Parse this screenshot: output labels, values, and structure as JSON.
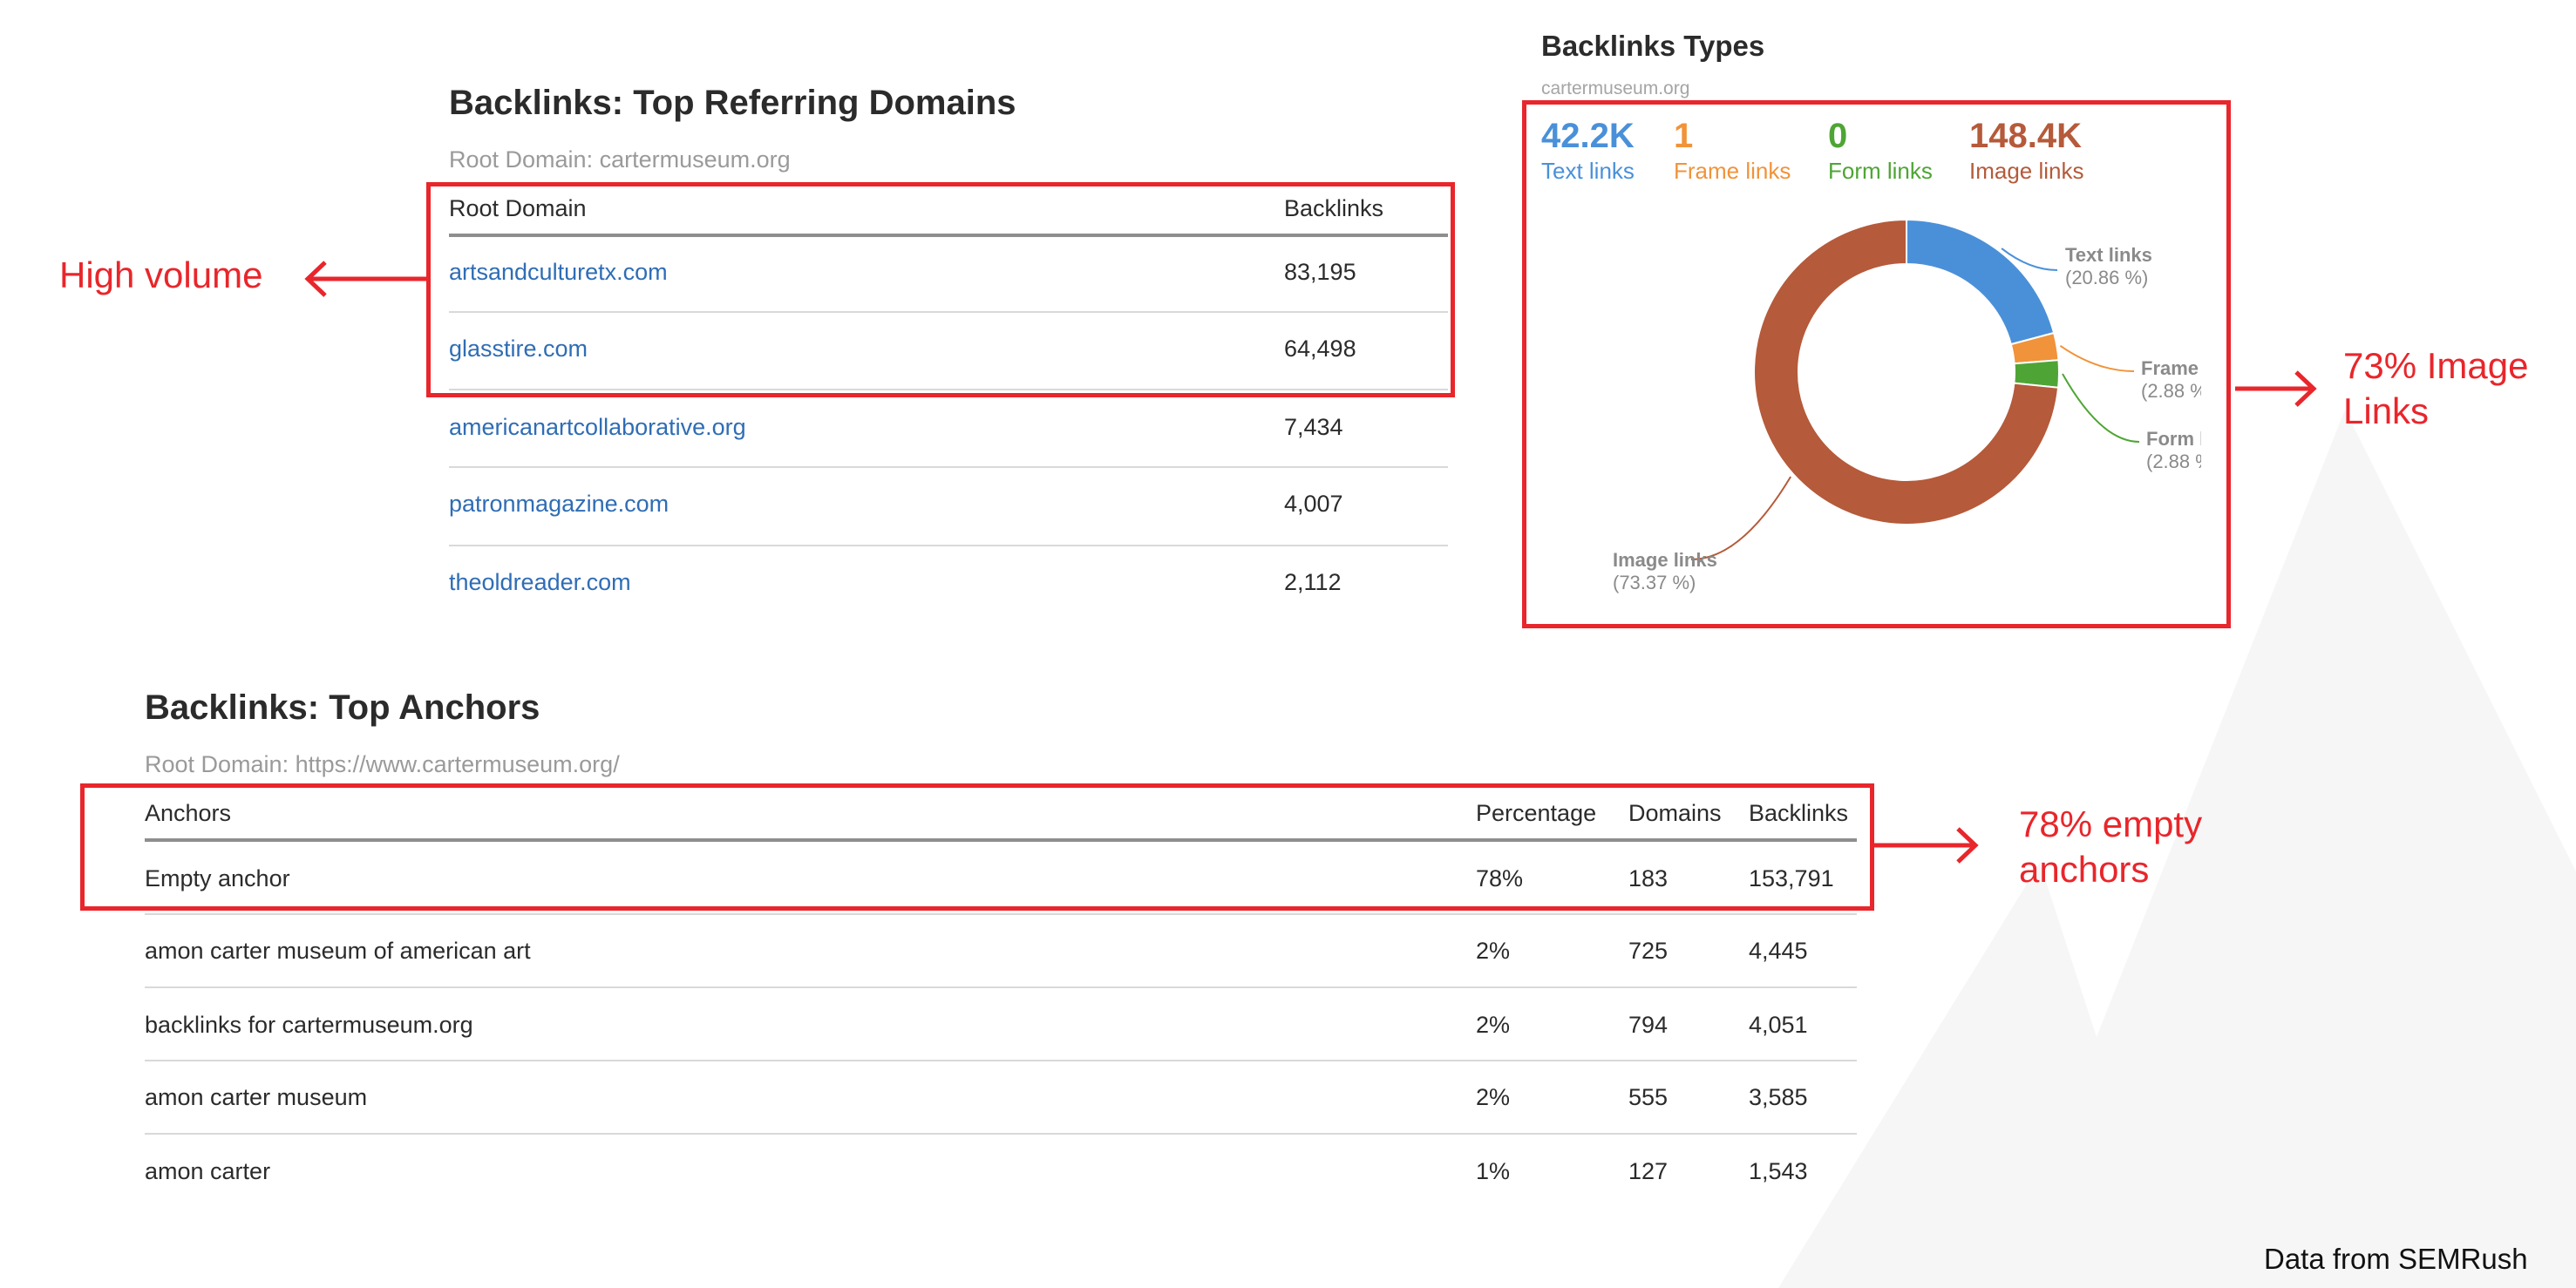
{
  "referring": {
    "title": "Backlinks: Top Referring Domains",
    "subtitle": "Root Domain: cartermuseum.org",
    "columns": [
      "Root Domain",
      "Backlinks"
    ],
    "rows": [
      {
        "domain": "artsandculturetx.com",
        "backlinks": "83,195"
      },
      {
        "domain": "glasstire.com",
        "backlinks": "64,498"
      },
      {
        "domain": "americanartcollaborative.org",
        "backlinks": "7,434"
      },
      {
        "domain": "patronmagazine.com",
        "backlinks": "4,007"
      },
      {
        "domain": "theoldreader.com",
        "backlinks": "2,112"
      }
    ]
  },
  "types": {
    "title": "Backlinks Types",
    "subtitle": "cartermuseum.org",
    "stats": [
      {
        "value": "42.2K",
        "label": "Text links",
        "color": "#4a90d9"
      },
      {
        "value": "1",
        "label": "Frame links",
        "color": "#f0933a"
      },
      {
        "value": "0",
        "label": "Form links",
        "color": "#4ea535"
      },
      {
        "value": "148.4K",
        "label": "Image links",
        "color": "#b55a3a"
      }
    ]
  },
  "chart_data": {
    "type": "pie",
    "donut": true,
    "title": "Backlinks Types",
    "slices": [
      {
        "name": "Text links",
        "value": 20.86,
        "label": "Text links",
        "pct_label": "(20.86 %)",
        "color": "#4a90d9"
      },
      {
        "name": "Frame links",
        "value": 2.88,
        "label": "Frame",
        "pct_label": "(2.88 %",
        "color": "#f0933a"
      },
      {
        "name": "Form links",
        "value": 2.88,
        "label": "Form l",
        "pct_label": "(2.88 %",
        "color": "#4ea535"
      },
      {
        "name": "Image links",
        "value": 73.37,
        "label": "Image links",
        "pct_label": "(73.37 %)",
        "color": "#b55a3a"
      }
    ]
  },
  "anchors": {
    "title": "Backlinks: Top Anchors",
    "subtitle": "Root Domain: https://www.cartermuseum.org/",
    "columns": [
      "Anchors",
      "Percentage",
      "Domains",
      "Backlinks"
    ],
    "rows": [
      {
        "anchor": "Empty anchor",
        "percentage": "78%",
        "domains": "183",
        "backlinks": "153,791"
      },
      {
        "anchor": "amon carter museum of american art",
        "percentage": "2%",
        "domains": "725",
        "backlinks": "4,445"
      },
      {
        "anchor": "backlinks for cartermuseum.org",
        "percentage": "2%",
        "domains": "794",
        "backlinks": "4,051"
      },
      {
        "anchor": "amon carter museum",
        "percentage": "2%",
        "domains": "555",
        "backlinks": "3,585"
      },
      {
        "anchor": "amon carter",
        "percentage": "1%",
        "domains": "127",
        "backlinks": "1,543"
      }
    ]
  },
  "annotations": {
    "high_volume": "High volume",
    "image_links_line1": "73% Image",
    "image_links_line2": "Links",
    "empty_anchors_line1": "78% empty",
    "empty_anchors_line2": "anchors"
  },
  "footer": {
    "source": "Data from SEMRush"
  },
  "colors": {
    "annotation_red": "#e8262b",
    "link_blue": "#2f6db5"
  }
}
